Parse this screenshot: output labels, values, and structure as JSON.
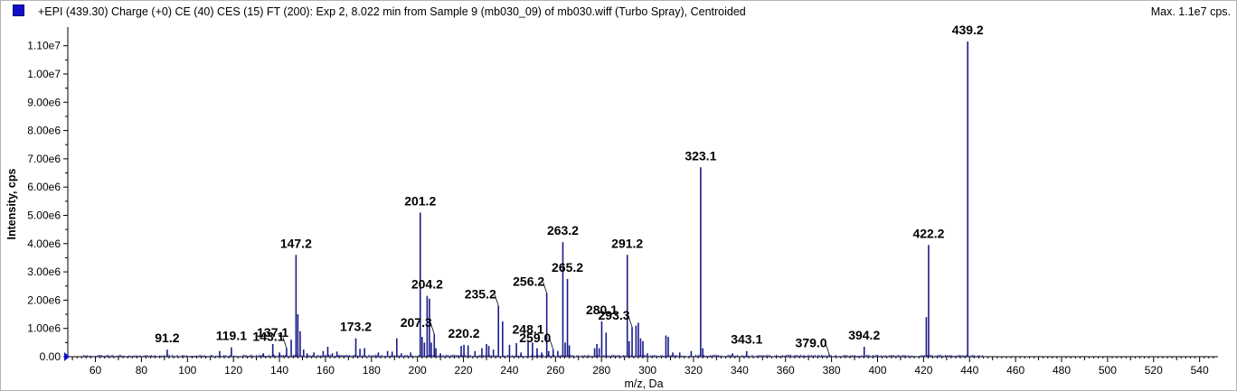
{
  "header": {
    "title": "+EPI (439.30) Charge (+0) CE (40) CES (15) FT (200): Exp 2, 8.022 min from Sample 9 (mb030_09) of mb030.wiff (Turbo Spray), Centroided",
    "max_label": "Max. 1.1e7 cps."
  },
  "colors": {
    "series": "#1a1a8c",
    "axis": "#000000",
    "marker": "#1010c8"
  },
  "chart_data": {
    "type": "bar",
    "xlabel": "m/z, Da",
    "ylabel": "Intensity, cps",
    "xlim": [
      48,
      548
    ],
    "ylim": [
      0,
      11500000
    ],
    "x_ticks": [
      60,
      80,
      100,
      120,
      140,
      160,
      180,
      200,
      220,
      240,
      260,
      280,
      300,
      320,
      340,
      360,
      380,
      400,
      420,
      440,
      460,
      480,
      500,
      520,
      540
    ],
    "y_ticks": [
      {
        "value": 0,
        "label": "0.00"
      },
      {
        "value": 1000000,
        "label": "1.00e6"
      },
      {
        "value": 2000000,
        "label": "2.00e6"
      },
      {
        "value": 3000000,
        "label": "3.00e6"
      },
      {
        "value": 4000000,
        "label": "4.00e6"
      },
      {
        "value": 5000000,
        "label": "5.00e6"
      },
      {
        "value": 6000000,
        "label": "6.00e6"
      },
      {
        "value": 7000000,
        "label": "7.00e6"
      },
      {
        "value": 8000000,
        "label": "8.00e6"
      },
      {
        "value": 9000000,
        "label": "9.00e6"
      },
      {
        "value": 10000000,
        "label": "1.00e7"
      },
      {
        "value": 11000000,
        "label": "1.10e7"
      }
    ],
    "peaks": [
      {
        "mz": 91.2,
        "intensity": 250000,
        "label": "91.2"
      },
      {
        "mz": 114.0,
        "intensity": 200000
      },
      {
        "mz": 119.1,
        "intensity": 330000,
        "label": "119.1"
      },
      {
        "mz": 133.0,
        "intensity": 120000
      },
      {
        "mz": 137.1,
        "intensity": 450000,
        "label": "137.1"
      },
      {
        "mz": 140.0,
        "intensity": 150000
      },
      {
        "mz": 143.1,
        "intensity": 300000,
        "label": "143.1",
        "leader": true
      },
      {
        "mz": 145.1,
        "intensity": 600000
      },
      {
        "mz": 147.2,
        "intensity": 3600000,
        "label": "147.2"
      },
      {
        "mz": 148.0,
        "intensity": 1500000
      },
      {
        "mz": 149.0,
        "intensity": 900000
      },
      {
        "mz": 150.5,
        "intensity": 250000
      },
      {
        "mz": 152.0,
        "intensity": 120000
      },
      {
        "mz": 155.0,
        "intensity": 150000
      },
      {
        "mz": 159.0,
        "intensity": 200000
      },
      {
        "mz": 161.0,
        "intensity": 350000
      },
      {
        "mz": 163.0,
        "intensity": 120000
      },
      {
        "mz": 165.0,
        "intensity": 180000
      },
      {
        "mz": 173.2,
        "intensity": 650000,
        "label": "173.2"
      },
      {
        "mz": 175.0,
        "intensity": 280000
      },
      {
        "mz": 177.0,
        "intensity": 300000
      },
      {
        "mz": 183.0,
        "intensity": 150000
      },
      {
        "mz": 187.0,
        "intensity": 200000
      },
      {
        "mz": 189.0,
        "intensity": 180000
      },
      {
        "mz": 191.0,
        "intensity": 650000
      },
      {
        "mz": 193.0,
        "intensity": 120000
      },
      {
        "mz": 197.0,
        "intensity": 150000
      },
      {
        "mz": 201.2,
        "intensity": 5100000,
        "label": "201.2"
      },
      {
        "mz": 202.0,
        "intensity": 700000
      },
      {
        "mz": 203.0,
        "intensity": 500000
      },
      {
        "mz": 204.2,
        "intensity": 2150000,
        "label": "204.2"
      },
      {
        "mz": 205.2,
        "intensity": 2050000
      },
      {
        "mz": 206.0,
        "intensity": 500000
      },
      {
        "mz": 207.3,
        "intensity": 800000,
        "label": "207.3",
        "leader": true
      },
      {
        "mz": 208.0,
        "intensity": 300000
      },
      {
        "mz": 210.0,
        "intensity": 120000
      },
      {
        "mz": 219.0,
        "intensity": 380000
      },
      {
        "mz": 220.2,
        "intensity": 420000,
        "label": "220.2"
      },
      {
        "mz": 222.0,
        "intensity": 400000
      },
      {
        "mz": 225.0,
        "intensity": 200000
      },
      {
        "mz": 228.0,
        "intensity": 300000
      },
      {
        "mz": 230.0,
        "intensity": 450000
      },
      {
        "mz": 231.0,
        "intensity": 380000
      },
      {
        "mz": 233.0,
        "intensity": 250000
      },
      {
        "mz": 235.2,
        "intensity": 1800000,
        "label": "235.2",
        "leader": true
      },
      {
        "mz": 237.0,
        "intensity": 1250000
      },
      {
        "mz": 240.0,
        "intensity": 420000
      },
      {
        "mz": 243.0,
        "intensity": 480000
      },
      {
        "mz": 245.0,
        "intensity": 150000
      },
      {
        "mz": 248.1,
        "intensity": 560000,
        "label": "248.1"
      },
      {
        "mz": 250.0,
        "intensity": 500000
      },
      {
        "mz": 252.0,
        "intensity": 300000
      },
      {
        "mz": 254.0,
        "intensity": 150000
      },
      {
        "mz": 256.2,
        "intensity": 2250000,
        "label": "256.2",
        "leader": true
      },
      {
        "mz": 257.0,
        "intensity": 200000
      },
      {
        "mz": 259.0,
        "intensity": 250000,
        "label": "259.0",
        "leader": true
      },
      {
        "mz": 261.0,
        "intensity": 200000
      },
      {
        "mz": 263.2,
        "intensity": 4050000,
        "label": "263.2"
      },
      {
        "mz": 264.2,
        "intensity": 500000
      },
      {
        "mz": 265.2,
        "intensity": 2750000,
        "label": "265.2"
      },
      {
        "mz": 266.0,
        "intensity": 400000
      },
      {
        "mz": 277.0,
        "intensity": 300000
      },
      {
        "mz": 278.0,
        "intensity": 450000
      },
      {
        "mz": 279.0,
        "intensity": 300000
      },
      {
        "mz": 280.1,
        "intensity": 1250000,
        "label": "280.1"
      },
      {
        "mz": 282.0,
        "intensity": 850000
      },
      {
        "mz": 291.2,
        "intensity": 3600000,
        "label": "291.2"
      },
      {
        "mz": 292.0,
        "intensity": 550000
      },
      {
        "mz": 293.3,
        "intensity": 1050000,
        "label": "293.3",
        "leader": true
      },
      {
        "mz": 295.0,
        "intensity": 1100000
      },
      {
        "mz": 296.0,
        "intensity": 1200000
      },
      {
        "mz": 297.0,
        "intensity": 650000
      },
      {
        "mz": 298.0,
        "intensity": 550000
      },
      {
        "mz": 300.0,
        "intensity": 120000
      },
      {
        "mz": 308.0,
        "intensity": 750000
      },
      {
        "mz": 309.0,
        "intensity": 700000
      },
      {
        "mz": 311.0,
        "intensity": 150000
      },
      {
        "mz": 314.0,
        "intensity": 150000
      },
      {
        "mz": 319.0,
        "intensity": 200000
      },
      {
        "mz": 323.1,
        "intensity": 6700000,
        "label": "323.1"
      },
      {
        "mz": 324.0,
        "intensity": 300000
      },
      {
        "mz": 337.0,
        "intensity": 120000
      },
      {
        "mz": 343.1,
        "intensity": 200000,
        "label": "343.1"
      },
      {
        "mz": 379.0,
        "intensity": 80000,
        "label": "379.0",
        "leader": true
      },
      {
        "mz": 394.2,
        "intensity": 350000,
        "label": "394.2"
      },
      {
        "mz": 421.2,
        "intensity": 1400000
      },
      {
        "mz": 422.2,
        "intensity": 3950000,
        "label": "422.2"
      },
      {
        "mz": 439.2,
        "intensity": 11150000,
        "label": "439.2"
      }
    ]
  }
}
